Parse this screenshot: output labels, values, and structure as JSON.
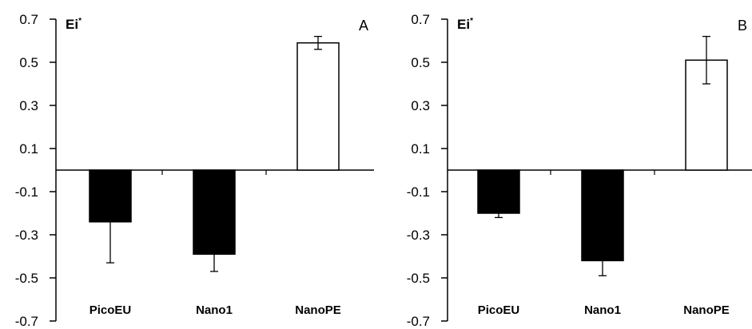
{
  "chart_data": [
    {
      "type": "bar",
      "panel": "A",
      "ylabel": "Ei*",
      "categories": [
        "PicoEU",
        "Nano1",
        "NanoPE"
      ],
      "values": [
        -0.24,
        -0.39,
        0.59
      ],
      "errors": [
        0.19,
        0.08,
        0.03
      ],
      "bar_colors": [
        "#000000",
        "#000000",
        "#ffffff"
      ],
      "ylim": [
        -0.7,
        0.7
      ],
      "yticks": [
        "0.7",
        "0.5",
        "0.3",
        "0.1",
        "-0.1",
        "-0.3",
        "-0.5",
        "-0.7"
      ],
      "grid": false
    },
    {
      "type": "bar",
      "panel": "B",
      "ylabel": "Ei*",
      "categories": [
        "PicoEU",
        "Nano1",
        "NanoPE"
      ],
      "values": [
        -0.2,
        -0.42,
        0.51
      ],
      "errors": [
        0.02,
        0.07,
        0.11
      ],
      "bar_colors": [
        "#000000",
        "#000000",
        "#ffffff"
      ],
      "ylim": [
        -0.7,
        0.7
      ],
      "yticks": [
        "0.7",
        "0.5",
        "0.3",
        "0.1",
        "-0.1",
        "-0.3",
        "-0.5",
        "-0.7"
      ],
      "grid": false
    }
  ]
}
